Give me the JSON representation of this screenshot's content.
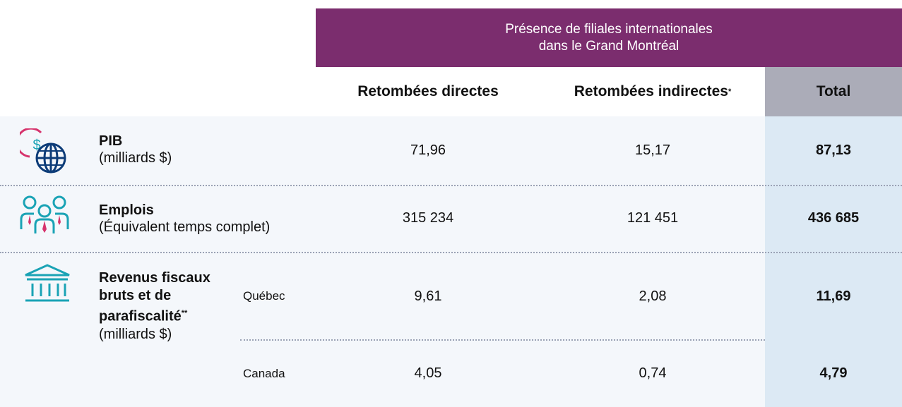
{
  "table": {
    "group_header": [
      "Présence de filiales internationales",
      "dans le Grand Montréal"
    ],
    "columns": [
      {
        "label": "Retombées directes"
      },
      {
        "label": "Retombées indirectes",
        "note": "*"
      },
      {
        "label": "Total"
      }
    ],
    "rows": [
      {
        "title": "PIB",
        "subtitle": "(milliards $)",
        "cells": [
          "71,96",
          "15,17",
          "87,13"
        ]
      },
      {
        "title": "Emplois",
        "subtitle": "(Équivalent temps complet)",
        "cells": [
          "315 234",
          "121 451",
          "436 685"
        ]
      },
      {
        "title": "Revenus fiscaux bruts et de parafiscalité",
        "note": "**",
        "subtitle": "(milliards $)",
        "subrows": [
          {
            "label": "Québec",
            "cells": [
              "9,61",
              "2,08",
              "11,69"
            ]
          },
          {
            "label": "Canada",
            "cells": [
              "4,05",
              "0,74",
              "4,79"
            ]
          }
        ]
      }
    ]
  }
}
